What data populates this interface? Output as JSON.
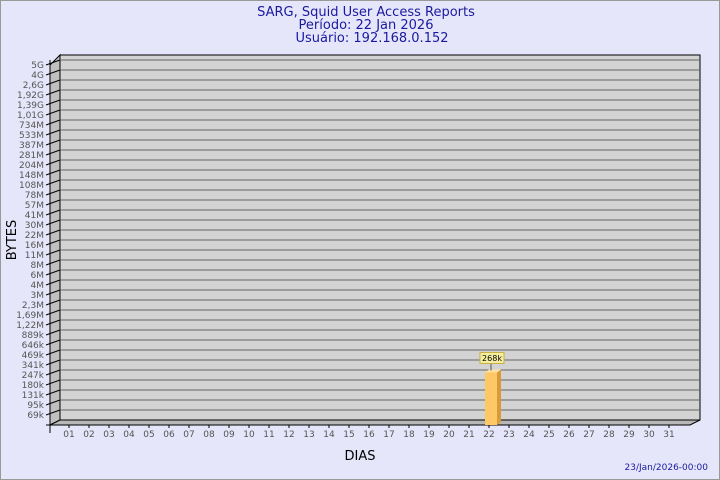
{
  "chart_data": {
    "type": "bar",
    "title": "SARG, Squid User Access Reports",
    "subtitle_period": "Período: 22 Jan 2026",
    "subtitle_user": "Usuário: 192.168.0.152",
    "xlabel": "DIAS",
    "ylabel": "BYTES",
    "y_scale": "log",
    "y_tick_labels": [
      "5G",
      "4G",
      "2,6G",
      "1,92G",
      "1,39G",
      "1,01G",
      "734M",
      "533M",
      "387M",
      "281M",
      "204M",
      "148M",
      "108M",
      "78M",
      "57M",
      "41M",
      "30M",
      "22M",
      "16M",
      "11M",
      "8M",
      "6M",
      "4M",
      "3M",
      "2,3M",
      "1,69M",
      "1,22M",
      "889k",
      "646k",
      "469k",
      "341k",
      "247k",
      "180k",
      "131k",
      "95k",
      "69k"
    ],
    "categories": [
      "01",
      "02",
      "03",
      "04",
      "05",
      "06",
      "07",
      "08",
      "09",
      "10",
      "11",
      "12",
      "13",
      "14",
      "15",
      "16",
      "17",
      "18",
      "19",
      "20",
      "21",
      "22",
      "23",
      "24",
      "25",
      "26",
      "27",
      "28",
      "29",
      "30",
      "31"
    ],
    "bars": [
      {
        "category": "22",
        "value": 268000,
        "label": "268k"
      }
    ],
    "grid": true,
    "bar_color": "#ffc866",
    "plot_bg": "#d3d3d3"
  },
  "footer": {
    "timestamp": "23/Jan/2026-00:00"
  }
}
